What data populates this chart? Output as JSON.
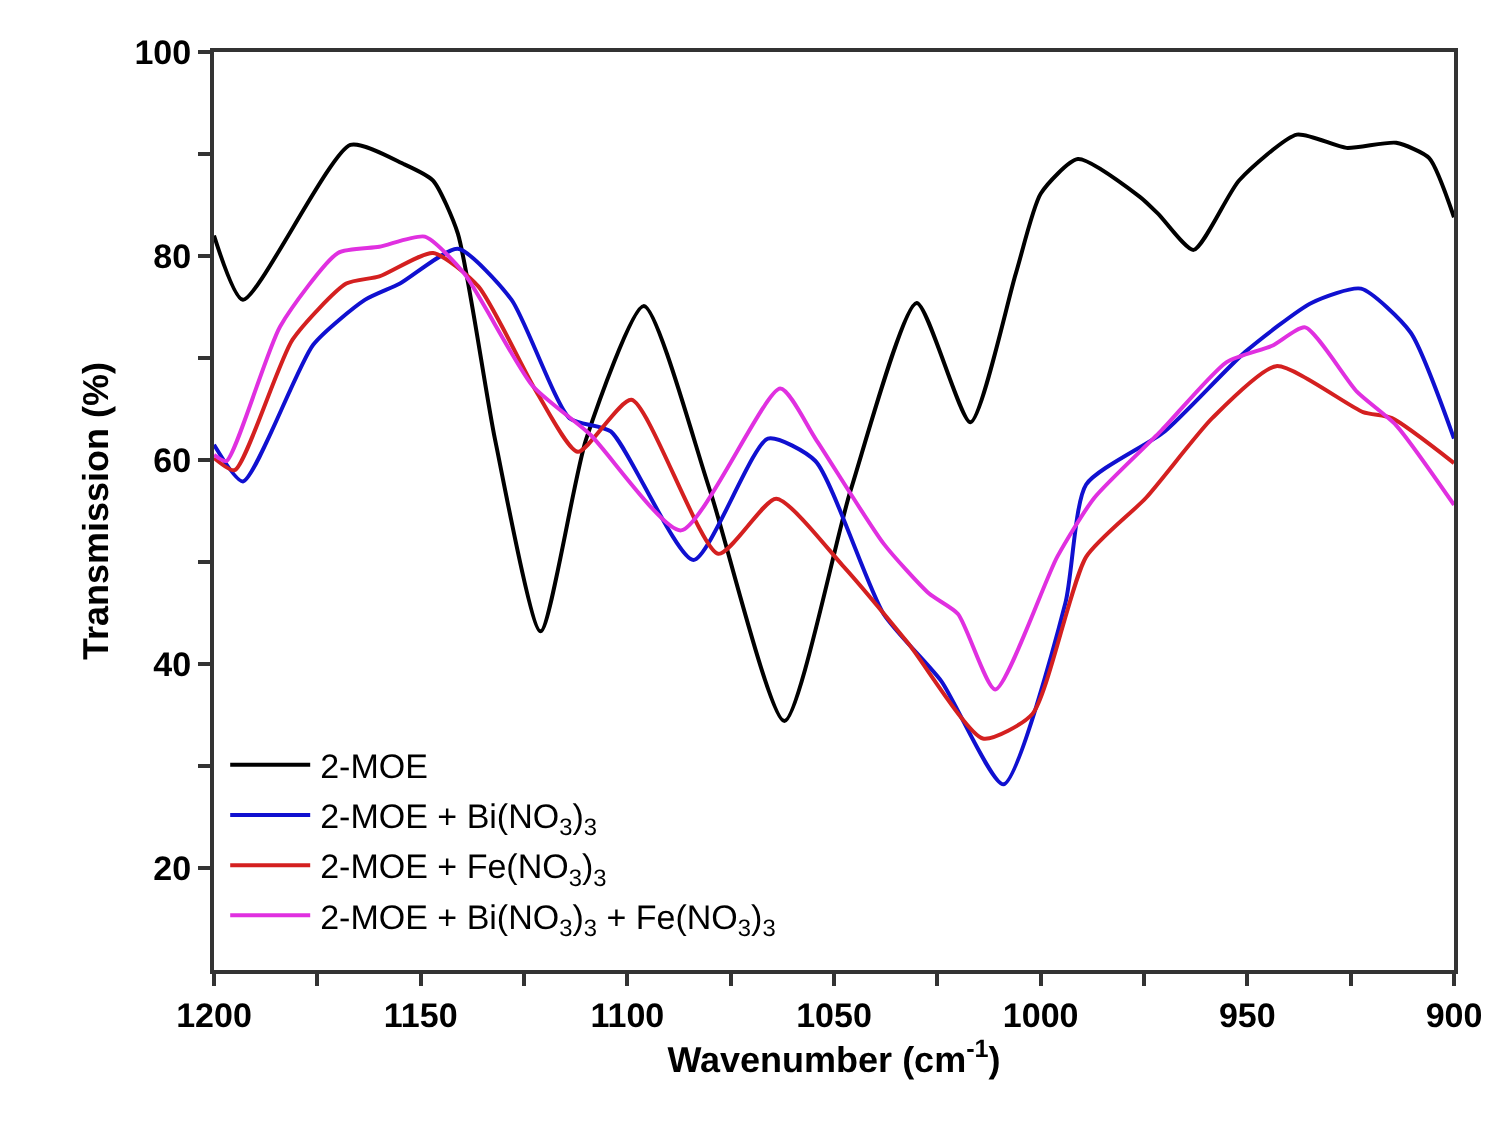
{
  "chart_data": {
    "type": "line",
    "xlabel": "Wavenumber (cm$^{-1}$)",
    "ylabel": "Transmission (%)",
    "xlim": [
      1200,
      900
    ],
    "ylim": [
      10,
      100
    ],
    "xticks": [
      1200,
      {
        "value": 1175,
        "label": null
      },
      1150,
      {
        "value": 1125,
        "label": null
      },
      1100,
      {
        "value": 1075,
        "label": null
      },
      1050,
      {
        "value": 1025,
        "label": null
      },
      1000,
      {
        "value": 975,
        "label": null
      },
      950,
      {
        "value": 925,
        "label": null
      },
      900
    ],
    "yticks": [
      20,
      {
        "value": 30,
        "label": null
      },
      40,
      {
        "value": 50,
        "label": null
      },
      60,
      {
        "value": 70,
        "label": null
      },
      80,
      {
        "value": 90,
        "label": null
      },
      100
    ],
    "legend": "bottom left",
    "marker": "none",
    "line_style": "solid",
    "series": [
      {
        "name": "2-MOE",
        "color": "#000000",
        "x": [
          1200,
          1193,
          1167,
          1154,
          1147,
          1141,
          1132,
          1121,
          1110,
          1096,
          1080,
          1062,
          1046,
          1030,
          1017,
          1006,
          1000,
          991,
          976,
          971.5,
          963,
          952,
          938,
          926,
          914,
          906,
          900
        ],
        "values": [
          82,
          75.7,
          90.9,
          89,
          87.4,
          82.2,
          62,
          43.2,
          62,
          75.1,
          57,
          34.4,
          57,
          75.4,
          63.7,
          78.3,
          86.1,
          89.5,
          85.8,
          84.1,
          80.6,
          87.4,
          91.9,
          90.6,
          91.1,
          89.6,
          83.8
        ]
      },
      {
        "name": "2-MOE + Bi(NO$_{3}$)$_{3}$",
        "color": "#1010d0",
        "x": [
          1200,
          1193,
          1176,
          1163.5,
          1155,
          1141,
          1128,
          1114,
          1104,
          1084,
          1066,
          1054.5,
          1038,
          1024,
          1009,
          994,
          989,
          970,
          950.5,
          934.5,
          922.5,
          910.5,
          900
        ],
        "values": [
          61.5,
          57.9,
          71.3,
          75.7,
          77.3,
          80.7,
          75.7,
          64.1,
          62.8,
          50.2,
          62.1,
          59.9,
          44.9,
          38.3,
          28.2,
          46,
          57.6,
          62.8,
          70.6,
          75.4,
          76.8,
          72.5,
          62.1
        ]
      },
      {
        "name": "2-MOE + Fe(NO$_{3}$)$_{3}$",
        "color": "#d42020",
        "x": [
          1200,
          1195,
          1181,
          1168,
          1160,
          1147,
          1136,
          1122,
          1112,
          1099,
          1078,
          1064,
          1048,
          1032,
          1014,
          1002,
          989,
          974.5,
          958.5,
          943,
          922,
          915,
          900
        ],
        "values": [
          60.2,
          59,
          71.8,
          77.3,
          78,
          80.3,
          77,
          66.7,
          60.8,
          65.9,
          50.8,
          56.2,
          49.7,
          42,
          32.7,
          35.1,
          50.5,
          56.3,
          64.1,
          69.2,
          64.7,
          64.1,
          59.7
        ]
      },
      {
        "name": "2-MOE + Bi(NO$_{3}$)$_{3}$ + Fe(NO$_{3}$)$_{3}$",
        "color": "#e030e0",
        "x": [
          1200,
          1197,
          1184,
          1170,
          1160,
          1149,
          1139.5,
          1123,
          1109,
          1087,
          1063,
          1054.5,
          1038,
          1027,
          1020,
          1011,
          996,
          987,
          971,
          955,
          944,
          936,
          923.5,
          914,
          900
        ],
        "values": [
          60.5,
          59.9,
          73.1,
          80.3,
          80.9,
          81.9,
          78.3,
          67.3,
          62.5,
          53.1,
          67,
          62.1,
          51.8,
          46.9,
          44.9,
          37.5,
          50.5,
          56.3,
          62.8,
          69.6,
          71.2,
          73,
          66.7,
          63.4,
          55.6
        ]
      }
    ]
  }
}
